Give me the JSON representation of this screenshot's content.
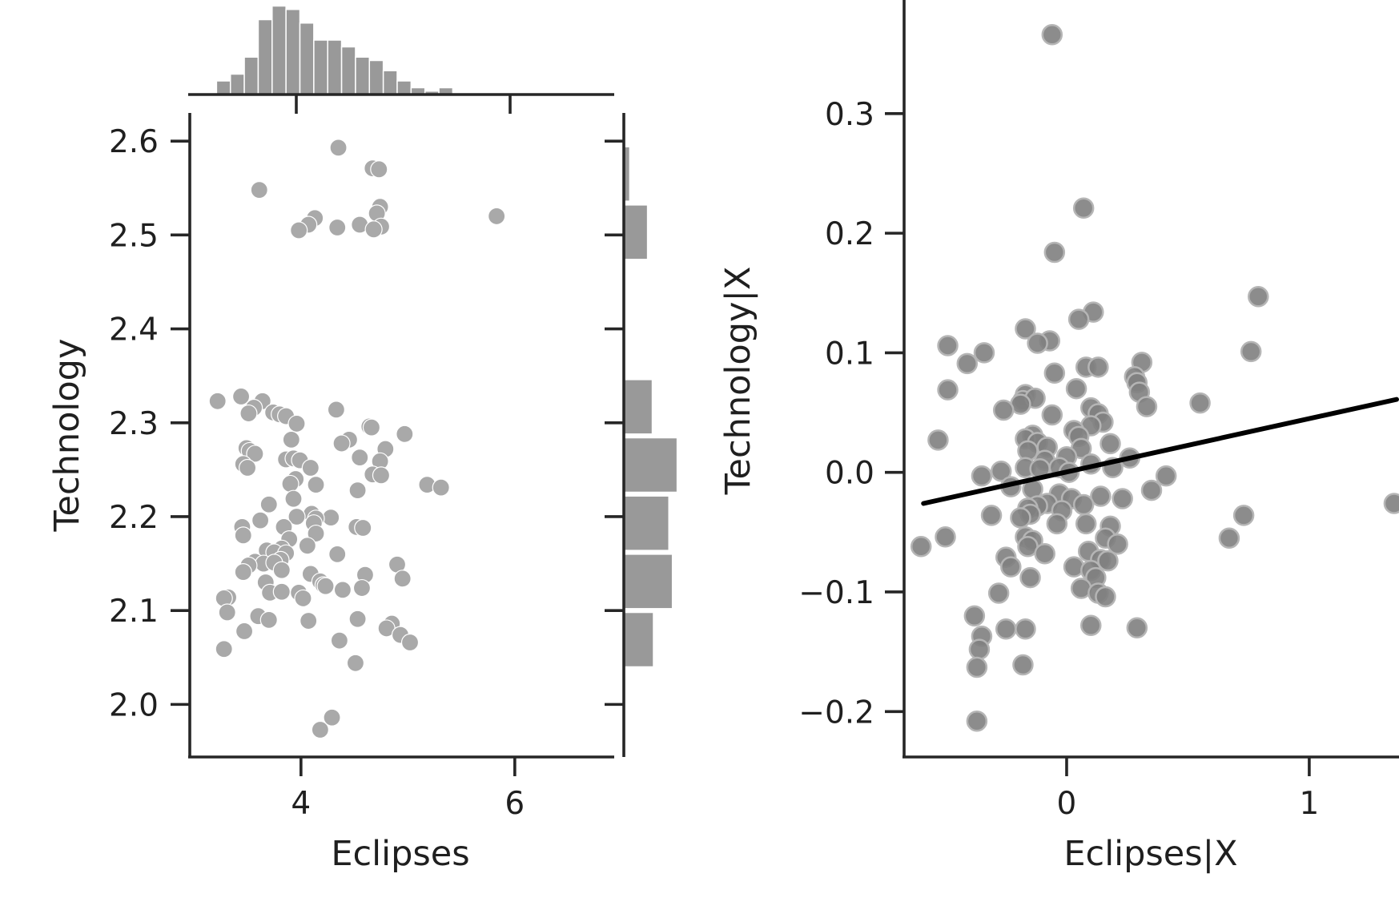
{
  "chart_data": [
    {
      "type": "scatter",
      "panel": "joint-scatter",
      "xlabel": "Eclipses",
      "ylabel": "Technology",
      "xlim": [
        2.96,
        6.93
      ],
      "ylim": [
        1.944,
        2.63
      ],
      "xticks": [
        4,
        6
      ],
      "yticks": [
        2.0,
        2.1,
        2.2,
        2.3,
        2.4,
        2.5,
        2.6
      ],
      "xtick_labels": [
        "4",
        "6"
      ],
      "ytick_labels": [
        "2.0",
        "2.1",
        "2.2",
        "2.3",
        "2.4",
        "2.5",
        "2.6"
      ],
      "point_color": "#a9a9a9",
      "points": [
        [
          4.35,
          2.593
        ],
        [
          4.67,
          2.571
        ],
        [
          4.73,
          2.57
        ],
        [
          3.61,
          2.548
        ],
        [
          5.83,
          2.52
        ],
        [
          4.74,
          2.53
        ],
        [
          4.71,
          2.523
        ],
        [
          4.13,
          2.518
        ],
        [
          4.07,
          2.511
        ],
        [
          4.55,
          2.511
        ],
        [
          4.34,
          2.508
        ],
        [
          4.75,
          2.509
        ],
        [
          3.98,
          2.505
        ],
        [
          4.68,
          2.506
        ],
        [
          4.33,
          2.314
        ],
        [
          3.22,
          2.323
        ],
        [
          3.44,
          2.328
        ],
        [
          3.64,
          2.323
        ],
        [
          3.56,
          2.316
        ],
        [
          3.51,
          2.31
        ],
        [
          3.74,
          2.311
        ],
        [
          3.8,
          2.309
        ],
        [
          3.86,
          2.307
        ],
        [
          3.96,
          2.299
        ],
        [
          4.64,
          2.296
        ],
        [
          4.66,
          2.295
        ],
        [
          4.97,
          2.288
        ],
        [
          3.91,
          2.282
        ],
        [
          4.45,
          2.282
        ],
        [
          4.38,
          2.278
        ],
        [
          4.79,
          2.272
        ],
        [
          3.49,
          2.273
        ],
        [
          3.52,
          2.27
        ],
        [
          3.57,
          2.267
        ],
        [
          4.55,
          2.263
        ],
        [
          4.74,
          2.259
        ],
        [
          3.86,
          2.261
        ],
        [
          3.93,
          2.262
        ],
        [
          3.99,
          2.26
        ],
        [
          3.46,
          2.256
        ],
        [
          3.5,
          2.252
        ],
        [
          4.09,
          2.252
        ],
        [
          4.67,
          2.245
        ],
        [
          4.75,
          2.244
        ],
        [
          3.95,
          2.24
        ],
        [
          3.9,
          2.235
        ],
        [
          4.14,
          2.234
        ],
        [
          5.18,
          2.234
        ],
        [
          5.31,
          2.231
        ],
        [
          4.53,
          2.228
        ],
        [
          3.93,
          2.219
        ],
        [
          3.7,
          2.213
        ],
        [
          4.1,
          2.203
        ],
        [
          3.96,
          2.2
        ],
        [
          4.28,
          2.199
        ],
        [
          4.14,
          2.198
        ],
        [
          4.12,
          2.193
        ],
        [
          3.62,
          2.196
        ],
        [
          3.84,
          2.189
        ],
        [
          3.45,
          2.189
        ],
        [
          4.52,
          2.189
        ],
        [
          4.58,
          2.188
        ],
        [
          4.14,
          2.182
        ],
        [
          3.89,
          2.176
        ],
        [
          3.46,
          2.18
        ],
        [
          4.06,
          2.169
        ],
        [
          3.82,
          2.166
        ],
        [
          3.68,
          2.164
        ],
        [
          3.75,
          2.162
        ],
        [
          3.86,
          2.161
        ],
        [
          4.34,
          2.16
        ],
        [
          3.81,
          2.154
        ],
        [
          3.57,
          2.152
        ],
        [
          3.65,
          2.15
        ],
        [
          3.75,
          2.151
        ],
        [
          3.51,
          2.148
        ],
        [
          4.9,
          2.149
        ],
        [
          3.82,
          2.143
        ],
        [
          3.46,
          2.141
        ],
        [
          4.6,
          2.138
        ],
        [
          4.09,
          2.139
        ],
        [
          4.95,
          2.134
        ],
        [
          3.67,
          2.13
        ],
        [
          4.18,
          2.131
        ],
        [
          4.21,
          2.127
        ],
        [
          4.23,
          2.126
        ],
        [
          4.39,
          2.122
        ],
        [
          4.57,
          2.124
        ],
        [
          3.71,
          2.119
        ],
        [
          3.82,
          2.12
        ],
        [
          3.98,
          2.119
        ],
        [
          4.02,
          2.113
        ],
        [
          3.32,
          2.114
        ],
        [
          3.28,
          2.113
        ],
        [
          3.31,
          2.098
        ],
        [
          3.6,
          2.094
        ],
        [
          3.7,
          2.09
        ],
        [
          4.07,
          2.089
        ],
        [
          4.53,
          2.091
        ],
        [
          4.85,
          2.086
        ],
        [
          4.8,
          2.081
        ],
        [
          3.47,
          2.078
        ],
        [
          4.93,
          2.074
        ],
        [
          5.02,
          2.066
        ],
        [
          4.36,
          2.068
        ],
        [
          3.28,
          2.059
        ],
        [
          4.51,
          2.044
        ],
        [
          4.29,
          1.986
        ],
        [
          4.18,
          1.973
        ]
      ]
    },
    {
      "type": "bar",
      "panel": "top-marginal-histogram",
      "orientation": "vertical",
      "bins_x_start": [
        3.21,
        3.34,
        3.47,
        3.6,
        3.73,
        3.86,
        3.99,
        4.12,
        4.25,
        4.38,
        4.51,
        4.64,
        4.77,
        4.9,
        5.03,
        5.16,
        5.29
      ],
      "values": [
        4,
        6,
        11,
        22,
        26,
        25,
        21,
        16,
        16,
        14,
        11,
        10,
        7,
        4,
        2,
        1,
        2
      ]
    },
    {
      "type": "bar",
      "panel": "right-marginal-histogram",
      "orientation": "horizontal",
      "bins_y_start": [
        2.04,
        2.102,
        2.164,
        2.226,
        2.288,
        2.474,
        2.536
      ],
      "bin_width": 0.058,
      "values": [
        25,
        41,
        38,
        45,
        24,
        20,
        5
      ]
    },
    {
      "type": "scatter",
      "panel": "partial-regression",
      "xlabel": "Eclipses|X",
      "ylabel": "Technology|X",
      "xlim": [
        -0.67,
        1.37
      ],
      "ylim": [
        -0.238,
        0.395
      ],
      "xticks": [
        0,
        1
      ],
      "yticks": [
        -0.2,
        -0.1,
        0.0,
        0.1,
        0.2,
        0.3
      ],
      "xtick_labels": [
        "0",
        "1"
      ],
      "ytick_labels": [
        "−0.2",
        "−0.1",
        "0.0",
        "0.1",
        "0.2",
        "0.3"
      ],
      "point_color": "#808080",
      "fit_line": {
        "x": [
          -0.59,
          1.36
        ],
        "y": [
          -0.026,
          0.061
        ]
      },
      "points": [
        [
          -0.06,
          0.366
        ],
        [
          0.07,
          0.221
        ],
        [
          -0.05,
          0.184
        ],
        [
          0.79,
          0.147
        ],
        [
          0.11,
          0.134
        ],
        [
          0.05,
          0.128
        ],
        [
          -0.17,
          0.12
        ],
        [
          -0.07,
          0.11
        ],
        [
          -0.12,
          0.108
        ],
        [
          -0.49,
          0.106
        ],
        [
          0.76,
          0.101
        ],
        [
          -0.34,
          0.1
        ],
        [
          -0.41,
          0.091
        ],
        [
          0.31,
          0.092
        ],
        [
          0.08,
          0.088
        ],
        [
          0.13,
          0.088
        ],
        [
          -0.05,
          0.083
        ],
        [
          0.28,
          0.08
        ],
        [
          0.29,
          0.075
        ],
        [
          0.3,
          0.067
        ],
        [
          -0.49,
          0.069
        ],
        [
          0.04,
          0.07
        ],
        [
          -0.17,
          0.065
        ],
        [
          -0.18,
          0.06
        ],
        [
          -0.13,
          0.062
        ],
        [
          -0.19,
          0.057
        ],
        [
          0.55,
          0.058
        ],
        [
          -0.26,
          0.052
        ],
        [
          0.33,
          0.055
        ],
        [
          0.1,
          0.054
        ],
        [
          0.13,
          0.049
        ],
        [
          -0.06,
          0.048
        ],
        [
          0.15,
          0.042
        ],
        [
          0.1,
          0.039
        ],
        [
          0.03,
          0.035
        ],
        [
          0.05,
          0.03
        ],
        [
          -0.14,
          0.031
        ],
        [
          -0.17,
          0.028
        ],
        [
          -0.12,
          0.025
        ],
        [
          -0.53,
          0.027
        ],
        [
          0.18,
          0.024
        ],
        [
          -0.08,
          0.021
        ],
        [
          -0.16,
          0.018
        ],
        [
          0.06,
          0.02
        ],
        [
          0.0,
          0.013
        ],
        [
          -0.09,
          0.01
        ],
        [
          0.26,
          0.012
        ],
        [
          0.1,
          0.007
        ],
        [
          -0.17,
          0.004
        ],
        [
          -0.11,
          0.003
        ],
        [
          -0.03,
          0.004
        ],
        [
          0.01,
          0.0
        ],
        [
          -0.27,
          0.001
        ],
        [
          -0.35,
          -0.003
        ],
        [
          0.41,
          -0.003
        ],
        [
          0.19,
          0.004
        ],
        [
          -0.23,
          -0.012
        ],
        [
          -0.14,
          -0.014
        ],
        [
          -0.03,
          -0.018
        ],
        [
          0.02,
          -0.022
        ],
        [
          0.14,
          -0.02
        ],
        [
          0.23,
          -0.022
        ],
        [
          0.35,
          -0.015
        ],
        [
          -0.08,
          -0.026
        ],
        [
          -0.12,
          -0.028
        ],
        [
          -0.16,
          -0.03
        ],
        [
          -0.15,
          -0.035
        ],
        [
          0.07,
          -0.027
        ],
        [
          -0.02,
          -0.032
        ],
        [
          -0.31,
          -0.036
        ],
        [
          1.35,
          -0.026
        ],
        [
          0.73,
          -0.036
        ],
        [
          -0.19,
          -0.038
        ],
        [
          -0.04,
          -0.043
        ],
        [
          0.08,
          -0.043
        ],
        [
          0.18,
          -0.045
        ],
        [
          -0.6,
          -0.062
        ],
        [
          -0.5,
          -0.054
        ],
        [
          -0.17,
          -0.054
        ],
        [
          -0.14,
          -0.057
        ],
        [
          -0.16,
          -0.062
        ],
        [
          0.16,
          -0.055
        ],
        [
          0.21,
          -0.06
        ],
        [
          0.67,
          -0.055
        ],
        [
          -0.25,
          -0.071
        ],
        [
          -0.09,
          -0.068
        ],
        [
          0.09,
          -0.066
        ],
        [
          0.14,
          -0.073
        ],
        [
          0.17,
          -0.074
        ],
        [
          -0.15,
          -0.088
        ],
        [
          -0.23,
          -0.079
        ],
        [
          0.03,
          -0.079
        ],
        [
          0.1,
          -0.082
        ],
        [
          0.12,
          -0.088
        ],
        [
          -0.28,
          -0.101
        ],
        [
          0.06,
          -0.097
        ],
        [
          0.13,
          -0.101
        ],
        [
          0.16,
          -0.104
        ],
        [
          -0.38,
          -0.12
        ],
        [
          -0.35,
          -0.137
        ],
        [
          -0.25,
          -0.131
        ],
        [
          -0.17,
          -0.131
        ],
        [
          0.1,
          -0.128
        ],
        [
          0.29,
          -0.13
        ],
        [
          -0.36,
          -0.148
        ],
        [
          -0.37,
          -0.163
        ],
        [
          -0.18,
          -0.161
        ],
        [
          -0.37,
          -0.208
        ]
      ]
    }
  ]
}
